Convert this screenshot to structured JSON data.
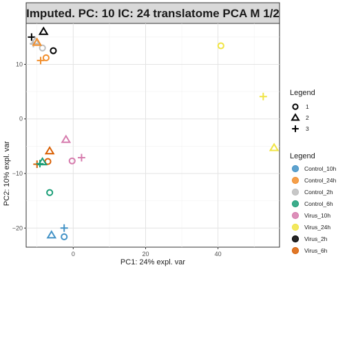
{
  "chart_data": {
    "type": "scatter",
    "title": "Imputed. PC: 10 IC: 24 translatome PCA M 1/2",
    "xlabel": "PC1: 24% expl. var",
    "ylabel": "PC2: 10% expl. var",
    "xlim": [
      -13,
      57
    ],
    "ylim": [
      -23.5,
      17.5
    ],
    "xticks": [
      0,
      20,
      40
    ],
    "yticks": [
      -20,
      -10,
      0,
      10
    ],
    "grid": true,
    "legend_placement": "right",
    "shape_legend": {
      "title": "Legend",
      "items": [
        {
          "label": "1",
          "shape": "circle"
        },
        {
          "label": "2",
          "shape": "triangle"
        },
        {
          "label": "3",
          "shape": "plus"
        }
      ]
    },
    "color_legend": {
      "title": "Legend",
      "items": [
        {
          "label": "Control_10h",
          "color": "#4292c6"
        },
        {
          "label": "Control_24h",
          "color": "#f28e2b"
        },
        {
          "label": "Control_2h",
          "color": "#bdbdbd"
        },
        {
          "label": "Control_6h",
          "color": "#1b9e77"
        },
        {
          "label": "Virus_10h",
          "color": "#d67bad"
        },
        {
          "label": "Virus_24h",
          "color": "#f0e442"
        },
        {
          "label": "Virus_2h",
          "color": "#000000"
        },
        {
          "label": "Virus_6h",
          "color": "#d95f02"
        }
      ]
    },
    "points": [
      {
        "x": -11.5,
        "y": 15.0,
        "group": "Virus_2h",
        "rep": "3"
      },
      {
        "x": -8.2,
        "y": 16.0,
        "group": "Virus_2h",
        "rep": "2"
      },
      {
        "x": -5.5,
        "y": 12.5,
        "group": "Virus_2h",
        "rep": "1"
      },
      {
        "x": -11.0,
        "y": 13.8,
        "group": "Control_2h",
        "rep": "3"
      },
      {
        "x": -10.5,
        "y": 14.2,
        "group": "Control_2h",
        "rep": "2"
      },
      {
        "x": -8.5,
        "y": 13.0,
        "group": "Control_2h",
        "rep": "1"
      },
      {
        "x": -10.0,
        "y": 14.0,
        "group": "Control_24h",
        "rep": "2"
      },
      {
        "x": -7.5,
        "y": 11.2,
        "group": "Control_24h",
        "rep": "1"
      },
      {
        "x": -9.0,
        "y": 10.7,
        "group": "Control_24h",
        "rep": "3"
      },
      {
        "x": 40.8,
        "y": 13.4,
        "group": "Virus_24h",
        "rep": "1"
      },
      {
        "x": 52.5,
        "y": 4.1,
        "group": "Virus_24h",
        "rep": "3"
      },
      {
        "x": 55.5,
        "y": -5.3,
        "group": "Virus_24h",
        "rep": "2"
      },
      {
        "x": -2.0,
        "y": -3.8,
        "group": "Virus_10h",
        "rep": "2"
      },
      {
        "x": 2.3,
        "y": -7.1,
        "group": "Virus_10h",
        "rep": "3"
      },
      {
        "x": -0.3,
        "y": -7.7,
        "group": "Virus_10h",
        "rep": "1"
      },
      {
        "x": -6.5,
        "y": -5.9,
        "group": "Virus_6h",
        "rep": "2"
      },
      {
        "x": -7.0,
        "y": -7.8,
        "group": "Virus_6h",
        "rep": "1"
      },
      {
        "x": -10.0,
        "y": -8.3,
        "group": "Virus_6h",
        "rep": "3"
      },
      {
        "x": -8.5,
        "y": -7.9,
        "group": "Control_6h",
        "rep": "2"
      },
      {
        "x": -9.2,
        "y": -8.2,
        "group": "Control_6h",
        "rep": "3"
      },
      {
        "x": -6.5,
        "y": -13.5,
        "group": "Control_6h",
        "rep": "1"
      },
      {
        "x": -2.5,
        "y": -20.0,
        "group": "Control_10h",
        "rep": "3"
      },
      {
        "x": -6.0,
        "y": -21.3,
        "group": "Control_10h",
        "rep": "2"
      },
      {
        "x": -2.5,
        "y": -21.6,
        "group": "Control_10h",
        "rep": "1"
      }
    ]
  }
}
